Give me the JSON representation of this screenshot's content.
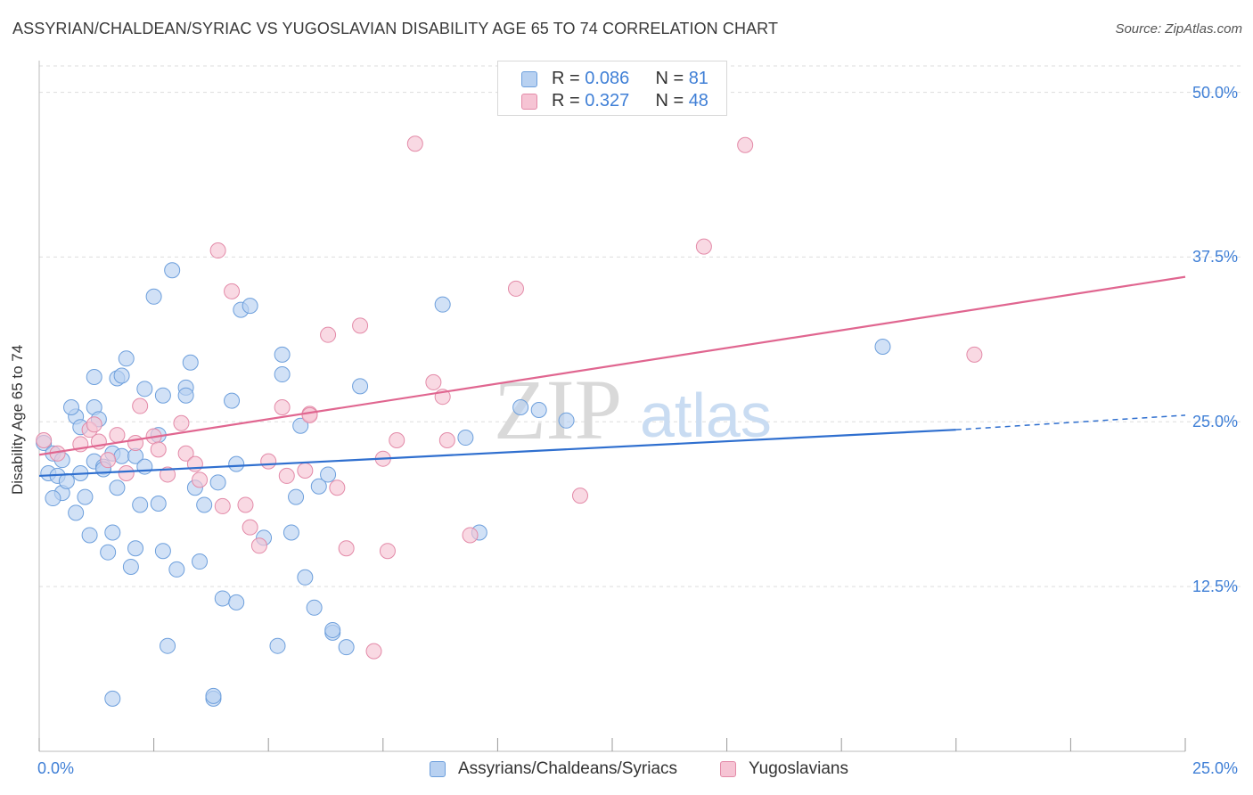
{
  "title": "ASSYRIAN/CHALDEAN/SYRIAC VS YUGOSLAVIAN DISABILITY AGE 65 TO 74 CORRELATION CHART",
  "source": "Source: ZipAtlas.com",
  "watermark": {
    "zip": "ZIP",
    "atlas": "atlas"
  },
  "legend": {
    "rows": [
      {
        "r_label": "R = ",
        "r_value": "0.086",
        "n_label": "N = ",
        "n_value": "81"
      },
      {
        "r_label": "R = ",
        "r_value": "0.327",
        "n_label": "N = ",
        "n_value": "48"
      }
    ]
  },
  "colors": {
    "blue_fill": "#b8d1f1",
    "blue_stroke": "#6d9fdc",
    "blue_line": "#2f6fcf",
    "pink_fill": "#f6c4d4",
    "pink_stroke": "#e38aa8",
    "pink_line": "#e06690",
    "grid": "#dddddd",
    "tick_text": "#3f7fd6"
  },
  "chart_data": {
    "type": "scatter",
    "title": "ASSYRIAN/CHALDEAN/SYRIAC VS YUGOSLAVIAN DISABILITY AGE 65 TO 74 CORRELATION CHART",
    "xlabel": "",
    "ylabel": "Disability Age 65 to 74",
    "xlim": [
      0,
      25
    ],
    "ylim": [
      0,
      52
    ],
    "x_tick_labels": [
      "0.0%",
      "25.0%"
    ],
    "y_ticks": [
      12.5,
      25.0,
      37.5,
      50.0
    ],
    "y_tick_labels": [
      "12.5%",
      "25.0%",
      "37.5%",
      "50.0%"
    ],
    "grid": true,
    "legend_position": "top-center",
    "series": [
      {
        "name": "Assyrians/Chaldeans/Syriacs",
        "r": 0.086,
        "n": 81,
        "trend": {
          "x": [
            0,
            20
          ],
          "y": [
            20.9,
            24.4
          ],
          "dashed_to": [
            25,
            25.5
          ]
        },
        "points": [
          [
            0.1,
            23.4
          ],
          [
            0.2,
            21.1
          ],
          [
            0.3,
            22.6
          ],
          [
            0.4,
            20.9
          ],
          [
            0.5,
            22.1
          ],
          [
            0.5,
            19.6
          ],
          [
            0.6,
            20.5
          ],
          [
            0.3,
            19.2
          ],
          [
            0.8,
            25.4
          ],
          [
            0.7,
            26.1
          ],
          [
            0.9,
            24.6
          ],
          [
            0.8,
            18.1
          ],
          [
            0.9,
            21.1
          ],
          [
            1.0,
            19.3
          ],
          [
            1.1,
            16.4
          ],
          [
            1.2,
            22.0
          ],
          [
            1.2,
            26.1
          ],
          [
            1.2,
            28.4
          ],
          [
            1.3,
            25.2
          ],
          [
            1.4,
            21.6
          ],
          [
            1.4,
            21.4
          ],
          [
            1.5,
            15.1
          ],
          [
            1.6,
            22.6
          ],
          [
            1.6,
            16.6
          ],
          [
            1.7,
            20.0
          ],
          [
            1.7,
            28.3
          ],
          [
            1.8,
            22.4
          ],
          [
            1.8,
            28.5
          ],
          [
            1.9,
            29.8
          ],
          [
            2.0,
            14.0
          ],
          [
            2.1,
            15.4
          ],
          [
            2.1,
            22.4
          ],
          [
            2.2,
            18.7
          ],
          [
            2.3,
            21.6
          ],
          [
            2.3,
            27.5
          ],
          [
            2.5,
            34.5
          ],
          [
            2.6,
            24.0
          ],
          [
            2.6,
            18.8
          ],
          [
            2.7,
            15.2
          ],
          [
            2.7,
            27.0
          ],
          [
            2.8,
            8.0
          ],
          [
            2.9,
            36.5
          ],
          [
            3.0,
            13.8
          ],
          [
            3.2,
            27.6
          ],
          [
            3.2,
            27.0
          ],
          [
            3.3,
            29.5
          ],
          [
            3.4,
            20.0
          ],
          [
            3.5,
            14.4
          ],
          [
            3.6,
            18.7
          ],
          [
            3.8,
            4.0
          ],
          [
            3.9,
            20.4
          ],
          [
            4.0,
            11.6
          ],
          [
            4.2,
            26.6
          ],
          [
            4.3,
            21.8
          ],
          [
            4.3,
            11.3
          ],
          [
            4.4,
            33.5
          ],
          [
            4.6,
            33.8
          ],
          [
            4.9,
            16.2
          ],
          [
            5.2,
            8.0
          ],
          [
            5.3,
            30.1
          ],
          [
            5.3,
            28.6
          ],
          [
            5.5,
            16.6
          ],
          [
            5.6,
            19.3
          ],
          [
            5.7,
            24.7
          ],
          [
            5.8,
            13.2
          ],
          [
            6.0,
            10.9
          ],
          [
            6.1,
            20.1
          ],
          [
            6.3,
            21.0
          ],
          [
            6.4,
            9.0
          ],
          [
            6.7,
            7.9
          ],
          [
            7.0,
            27.7
          ],
          [
            8.8,
            33.9
          ],
          [
            9.3,
            23.8
          ],
          [
            9.6,
            16.6
          ],
          [
            10.5,
            26.1
          ],
          [
            10.9,
            25.9
          ],
          [
            11.5,
            25.1
          ],
          [
            3.8,
            4.2
          ],
          [
            1.6,
            4.0
          ],
          [
            18.4,
            30.7
          ],
          [
            6.4,
            9.2
          ]
        ]
      },
      {
        "name": "Yugoslavians",
        "r": 0.327,
        "n": 48,
        "trend": {
          "x": [
            0,
            25
          ],
          "y": [
            22.5,
            36.0
          ]
        },
        "points": [
          [
            0.1,
            23.6
          ],
          [
            0.4,
            22.6
          ],
          [
            0.9,
            23.3
          ],
          [
            1.1,
            24.4
          ],
          [
            1.2,
            24.8
          ],
          [
            1.3,
            23.5
          ],
          [
            1.5,
            22.1
          ],
          [
            1.7,
            24.0
          ],
          [
            1.9,
            21.1
          ],
          [
            2.1,
            23.4
          ],
          [
            2.2,
            26.2
          ],
          [
            2.5,
            23.9
          ],
          [
            2.6,
            22.9
          ],
          [
            2.8,
            21.0
          ],
          [
            3.1,
            24.9
          ],
          [
            3.2,
            22.6
          ],
          [
            3.4,
            21.8
          ],
          [
            3.5,
            20.6
          ],
          [
            3.9,
            38.0
          ],
          [
            4.0,
            18.6
          ],
          [
            4.2,
            34.9
          ],
          [
            4.5,
            18.7
          ],
          [
            4.6,
            17.0
          ],
          [
            4.8,
            15.6
          ],
          [
            5.0,
            22.0
          ],
          [
            5.3,
            26.1
          ],
          [
            5.4,
            20.9
          ],
          [
            5.8,
            21.3
          ],
          [
            5.9,
            25.6
          ],
          [
            6.3,
            31.6
          ],
          [
            6.5,
            20.0
          ],
          [
            6.7,
            15.4
          ],
          [
            7.0,
            32.3
          ],
          [
            7.3,
            7.6
          ],
          [
            7.5,
            22.2
          ],
          [
            7.6,
            15.2
          ],
          [
            7.8,
            23.6
          ],
          [
            8.2,
            46.1
          ],
          [
            8.6,
            28.0
          ],
          [
            8.8,
            26.9
          ],
          [
            8.9,
            23.6
          ],
          [
            9.4,
            16.4
          ],
          [
            10.4,
            35.1
          ],
          [
            11.8,
            19.4
          ],
          [
            14.5,
            38.3
          ],
          [
            15.4,
            46.0
          ],
          [
            20.4,
            30.1
          ],
          [
            5.9,
            25.5
          ]
        ]
      }
    ]
  },
  "bottom_legend": [
    "Assyrians/Chaldeans/Syriacs",
    "Yugoslavians"
  ]
}
